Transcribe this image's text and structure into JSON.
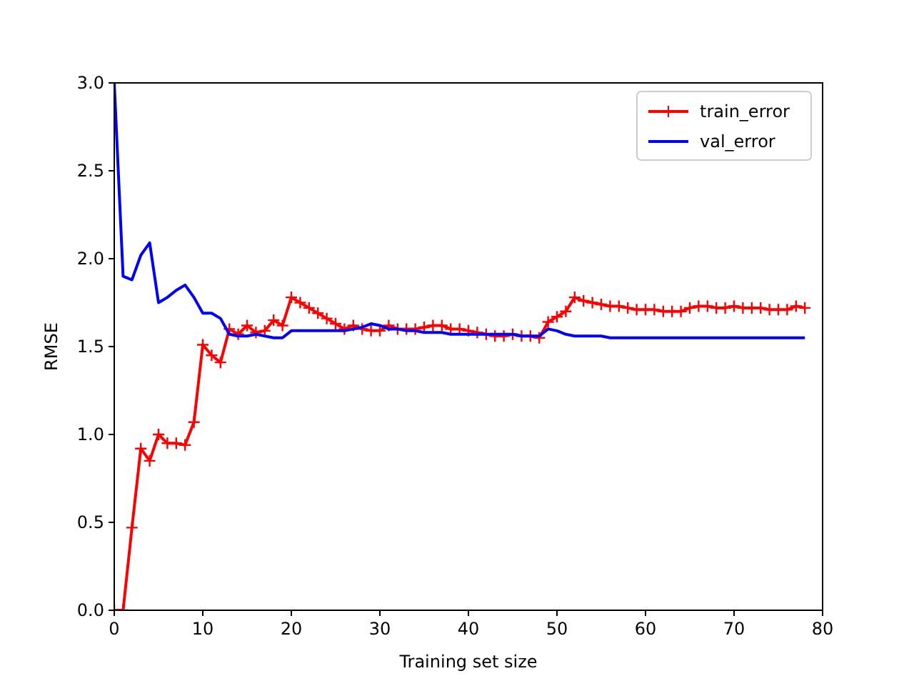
{
  "chart_data": {
    "type": "line",
    "xlabel": "Training set size",
    "ylabel": "RMSE",
    "x": [
      0,
      1,
      2,
      3,
      4,
      5,
      6,
      7,
      8,
      9,
      10,
      11,
      12,
      13,
      14,
      15,
      16,
      17,
      18,
      19,
      20,
      21,
      22,
      23,
      24,
      25,
      26,
      27,
      28,
      29,
      30,
      31,
      32,
      33,
      34,
      35,
      36,
      37,
      38,
      39,
      40,
      41,
      42,
      43,
      44,
      45,
      46,
      47,
      48,
      49,
      50,
      51,
      52,
      53,
      54,
      55,
      56,
      57,
      58,
      59,
      60,
      61,
      62,
      63,
      64,
      65,
      66,
      67,
      68,
      69,
      70,
      71,
      72,
      73,
      74,
      75,
      76,
      77,
      78
    ],
    "series": [
      {
        "name": "train_error",
        "color": "#ff0000",
        "marker": "cross",
        "values": [
          0,
          0,
          0.47,
          0.92,
          0.85,
          1.0,
          0.95,
          0.95,
          0.94,
          1.07,
          1.51,
          1.45,
          1.41,
          1.6,
          1.57,
          1.62,
          1.58,
          1.59,
          1.65,
          1.62,
          1.78,
          1.75,
          1.72,
          1.69,
          1.66,
          1.63,
          1.6,
          1.62,
          1.6,
          1.59,
          1.59,
          1.62,
          1.6,
          1.6,
          1.6,
          1.61,
          1.62,
          1.62,
          1.6,
          1.6,
          1.59,
          1.58,
          1.57,
          1.56,
          1.56,
          1.57,
          1.56,
          1.56,
          1.55,
          1.64,
          1.67,
          1.7,
          1.78,
          1.76,
          1.75,
          1.74,
          1.73,
          1.73,
          1.72,
          1.71,
          1.71,
          1.71,
          1.7,
          1.7,
          1.7,
          1.72,
          1.73,
          1.73,
          1.72,
          1.72,
          1.73,
          1.72,
          1.72,
          1.72,
          1.71,
          1.71,
          1.71,
          1.73,
          1.72
        ]
      },
      {
        "name": "val_error",
        "color": "#0000ff",
        "marker": "none",
        "values": [
          3.0,
          1.9,
          1.88,
          2.02,
          2.09,
          1.75,
          1.78,
          1.82,
          1.85,
          1.78,
          1.69,
          1.69,
          1.66,
          1.57,
          1.56,
          1.56,
          1.57,
          1.56,
          1.55,
          1.55,
          1.59,
          1.59,
          1.59,
          1.59,
          1.59,
          1.59,
          1.59,
          1.6,
          1.61,
          1.63,
          1.62,
          1.6,
          1.6,
          1.59,
          1.59,
          1.58,
          1.58,
          1.58,
          1.57,
          1.57,
          1.57,
          1.57,
          1.57,
          1.57,
          1.57,
          1.57,
          1.56,
          1.56,
          1.56,
          1.6,
          1.59,
          1.57,
          1.56,
          1.56,
          1.56,
          1.56,
          1.55,
          1.55,
          1.55,
          1.55,
          1.55,
          1.55,
          1.55,
          1.55,
          1.55,
          1.55,
          1.55,
          1.55,
          1.55,
          1.55,
          1.55,
          1.55,
          1.55,
          1.55,
          1.55,
          1.55,
          1.55,
          1.55,
          1.55
        ]
      }
    ],
    "xlim": [
      0,
      80
    ],
    "ylim": [
      0,
      3
    ],
    "xticks": [
      0,
      10,
      20,
      30,
      40,
      50,
      60,
      70,
      80
    ],
    "yticks": [
      {
        "value": 0,
        "label": "0.0"
      },
      {
        "value": 0.5,
        "label": "0.5"
      },
      {
        "value": 1,
        "label": "1.0"
      },
      {
        "value": 1.5,
        "label": "1.5"
      },
      {
        "value": 2,
        "label": "2.0"
      },
      {
        "value": 2.5,
        "label": "2.5"
      },
      {
        "value": 3,
        "label": "3.0"
      }
    ],
    "legend": "top right",
    "grid": false,
    "line_style": "solid"
  }
}
